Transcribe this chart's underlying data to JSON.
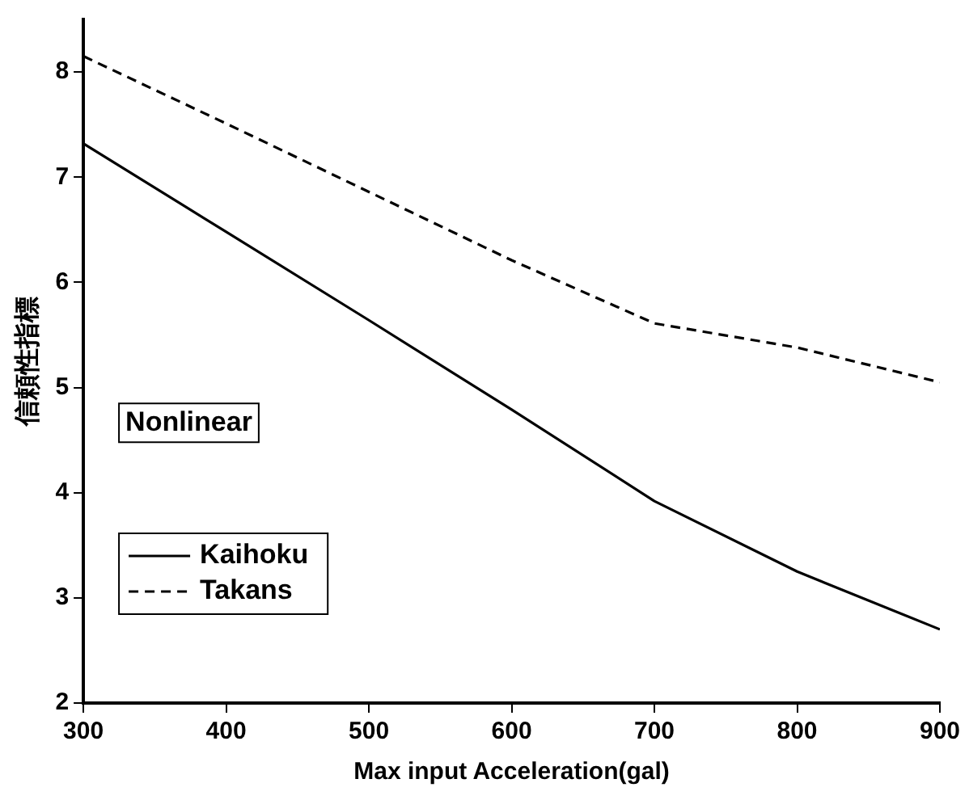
{
  "chart_data": {
    "type": "line",
    "xlabel": "Max input Acceleration(gal)",
    "ylabel": "信頼性指標",
    "x": [
      300,
      400,
      500,
      600,
      700,
      800,
      900
    ],
    "xlim": [
      300,
      900
    ],
    "xticks": [
      300,
      400,
      500,
      600,
      700,
      800,
      900
    ],
    "ylim": [
      2,
      8.5
    ],
    "yticks": [
      2,
      3,
      4,
      5,
      6,
      7,
      8
    ],
    "grid": false,
    "legend": "bottom left",
    "marker": "none",
    "annotations": [
      "Nonlinear"
    ],
    "series": [
      {
        "name": "Kaihoku",
        "color": "#000000",
        "line_style": "solid",
        "values": [
          7.32,
          6.48,
          5.64,
          4.79,
          3.92,
          3.25,
          2.7
        ]
      },
      {
        "name": "Takans",
        "color": "#000000",
        "line_style": "dashed",
        "values": [
          8.15,
          7.51,
          6.86,
          6.21,
          5.61,
          5.38,
          5.05
        ]
      }
    ]
  }
}
